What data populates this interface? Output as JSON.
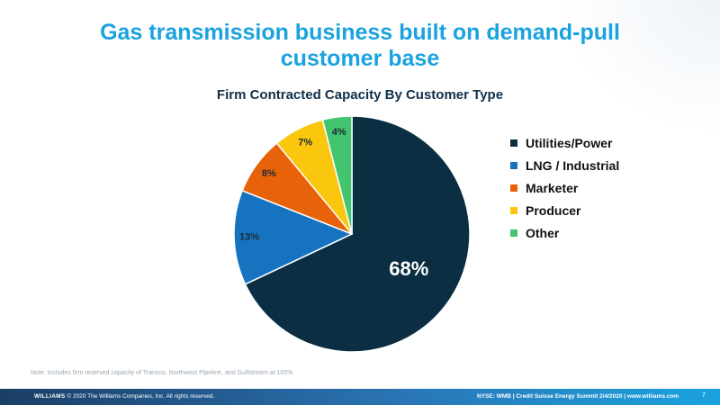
{
  "slide": {
    "title": "Gas transmission business built on demand-pull customer base",
    "note": "Note: Includes firm reserved capacity of Transco, Northwest Pipeline, and Gulfstream at 100%"
  },
  "footer": {
    "brand": "WILLIAMS",
    "copyright": "© 2020 The Williams Companies, Inc. All rights reserved.",
    "right": "NYSE: WMB  |  Credit Suisse Energy Summit 2/4/2020  |  www.williams.com",
    "page": "7"
  },
  "chart_data": {
    "type": "pie",
    "title": "Firm Contracted Capacity By Customer Type",
    "legend_position": "right",
    "slices": [
      {
        "label": "Utilities/Power",
        "value": 68,
        "display": "68%",
        "color": "#0b2e42"
      },
      {
        "label": "LNG / Industrial",
        "value": 13,
        "display": "13%",
        "color": "#1673c0"
      },
      {
        "label": "Marketer",
        "value": 8,
        "display": "8%",
        "color": "#e8620a"
      },
      {
        "label": "Producer",
        "value": 7,
        "display": "7%",
        "color": "#fbc60e"
      },
      {
        "label": "Other",
        "value": 4,
        "display": "4%",
        "color": "#43c46e"
      }
    ]
  }
}
